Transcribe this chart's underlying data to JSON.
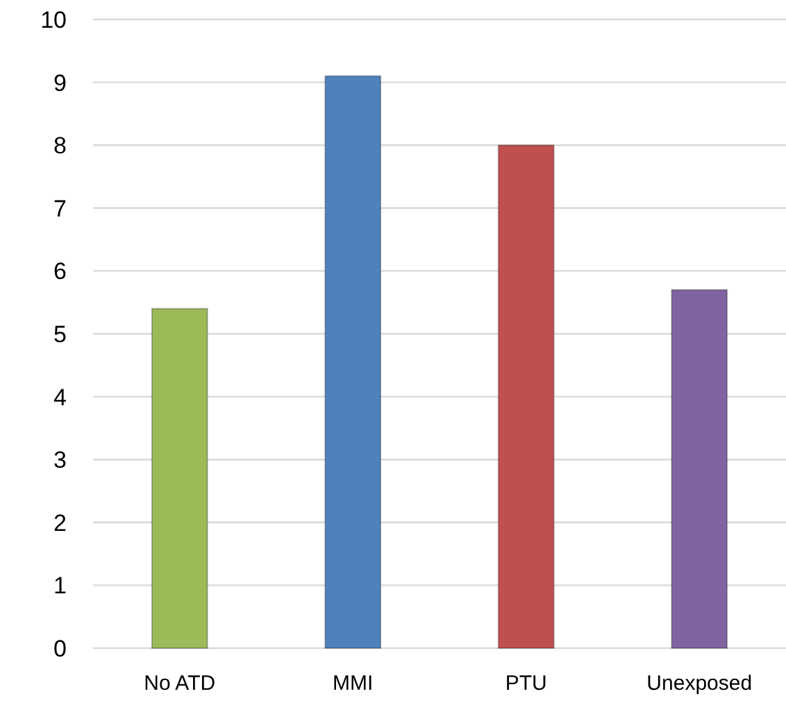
{
  "chart_data": {
    "type": "bar",
    "categories": [
      "No ATD",
      "MMI",
      "PTU",
      "Unexposed"
    ],
    "values": [
      5.4,
      9.1,
      8.0,
      5.7
    ],
    "colors": [
      "#9bbb59",
      "#4f81bd",
      "#c0504d",
      "#8064a2"
    ],
    "ylim": [
      0,
      10
    ],
    "yticks": [
      0,
      1,
      2,
      3,
      4,
      5,
      6,
      7,
      8,
      9,
      10
    ],
    "grid": "y"
  }
}
